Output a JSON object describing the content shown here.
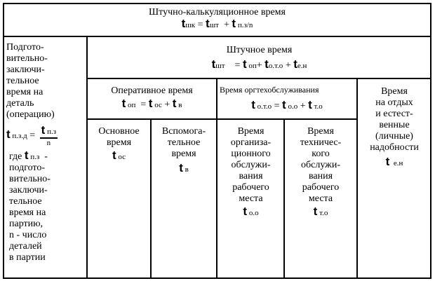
{
  "title": {
    "label": "Штучно-калькуляционное время",
    "formula": [
      [
        "v",
        "t"
      ],
      [
        "s",
        "шк"
      ],
      [
        "o",
        " = "
      ],
      [
        "v",
        "t"
      ],
      [
        "s",
        "шт"
      ],
      [
        "o",
        "  + "
      ],
      [
        "v",
        "t"
      ],
      [
        "s",
        " п.з/n"
      ]
    ]
  },
  "piece_time": {
    "label": "Штучное  время",
    "formula": [
      [
        "v",
        "t"
      ],
      [
        "s",
        "шт"
      ],
      [
        "o",
        "    = "
      ],
      [
        "v",
        "t"
      ],
      [
        "s",
        " оп"
      ],
      [
        "o",
        "+ "
      ],
      [
        "v",
        "t"
      ],
      [
        "s",
        "о.т.о"
      ],
      [
        "o",
        " + "
      ],
      [
        "v",
        "t"
      ],
      [
        "s",
        "е.н"
      ]
    ]
  },
  "prep": {
    "text_top": [
      "Подгото-",
      "вительно-",
      "заключи-",
      "тельное",
      "время  на",
      "деталь",
      "(операцию)"
    ],
    "formula_lhs": [
      [
        "v",
        "t"
      ],
      [
        "s",
        " п.з.д"
      ],
      [
        "o",
        " = "
      ]
    ],
    "frac_num": [
      [
        "v",
        "t"
      ],
      [
        "s",
        " п.з"
      ]
    ],
    "frac_den": "n",
    "where_formula": [
      [
        "o",
        "где "
      ],
      [
        "v",
        "t"
      ],
      [
        "s",
        " п.з"
      ],
      [
        "o",
        "  -"
      ]
    ],
    "text_bottom": [
      "подгото-",
      "вительно-",
      "заключи-",
      "тельное",
      "время  на",
      "партию,",
      "n - число",
      "деталей",
      "в партии"
    ]
  },
  "operative": {
    "label": "Оперативное время",
    "formula": [
      [
        "v",
        "t"
      ],
      [
        "s",
        " оп"
      ],
      [
        "o",
        "  = "
      ],
      [
        "v",
        "t"
      ],
      [
        "s",
        " ос"
      ],
      [
        "o",
        " + "
      ],
      [
        "v",
        "t"
      ],
      [
        "s",
        " в"
      ]
    ]
  },
  "orgtech": {
    "label": "Время оргтехобслуживания",
    "formula": [
      [
        "v",
        "t"
      ],
      [
        "s",
        " о.т.о"
      ],
      [
        "o",
        " = "
      ],
      [
        "v",
        "t"
      ],
      [
        "s",
        " о.о"
      ],
      [
        "o",
        " + "
      ],
      [
        "v",
        "t"
      ],
      [
        "s",
        " т.о"
      ]
    ]
  },
  "rest": {
    "lines": [
      "Время",
      "на отдых",
      "и естест-",
      "венные",
      "(личные)",
      "надобности"
    ],
    "formula": [
      [
        "v",
        "t"
      ],
      [
        "s",
        "  е.н"
      ]
    ]
  },
  "main": {
    "lines": [
      "Основное",
      "время"
    ],
    "formula": [
      [
        "v",
        "t"
      ],
      [
        "s",
        " ос"
      ]
    ]
  },
  "aux": {
    "lines": [
      "Вспомога-",
      "тельное",
      "время"
    ],
    "formula": [
      [
        "v",
        "t"
      ],
      [
        "s",
        " в"
      ]
    ]
  },
  "org": {
    "lines": [
      "Время",
      "организа-",
      "ционного",
      "обслужи-",
      "вания",
      "рабочего",
      "места"
    ],
    "formula": [
      [
        "v",
        "t"
      ],
      [
        "s",
        " о.о"
      ]
    ]
  },
  "tech": {
    "lines": [
      "Время",
      "техничес-",
      "кого",
      "обслужи-",
      "вания",
      "рабочего",
      "места"
    ],
    "formula": [
      [
        "v",
        "t"
      ],
      [
        "s",
        " т.о"
      ]
    ]
  }
}
